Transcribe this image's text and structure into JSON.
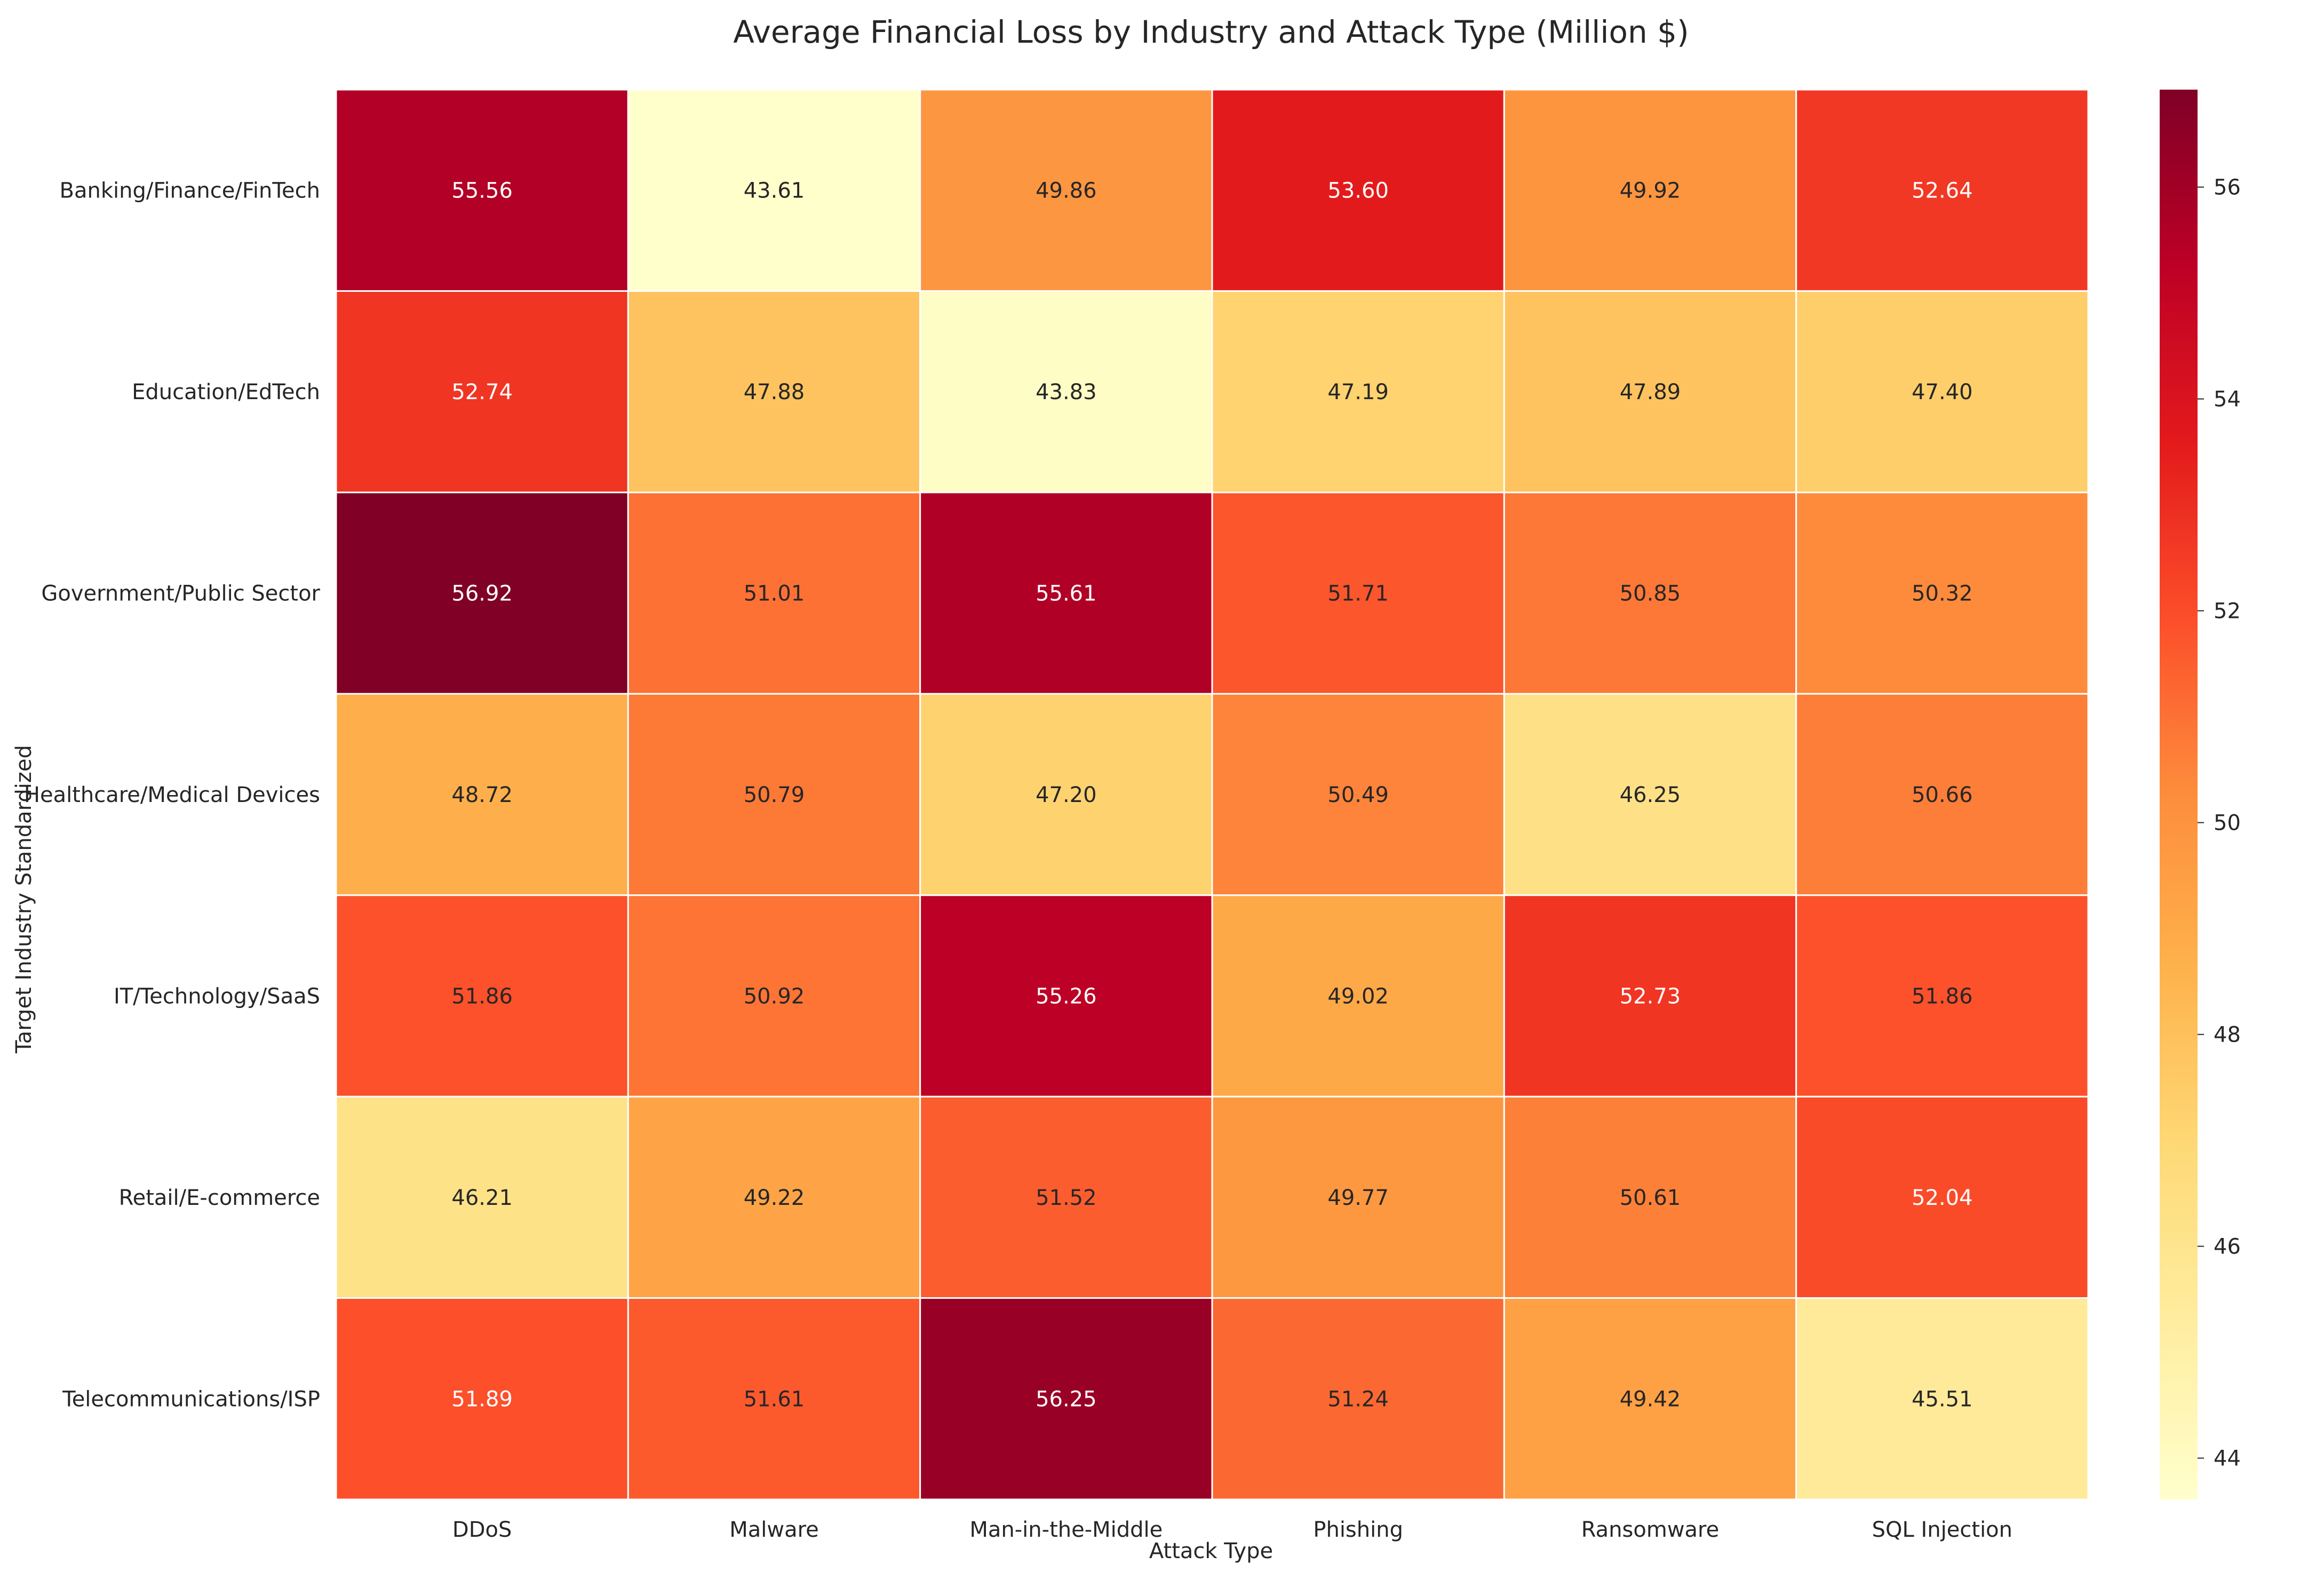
{
  "chart_data": {
    "type": "heatmap",
    "title": "Average Financial Loss by Industry and Attack Type (Million $)",
    "xlabel": "Attack Type",
    "ylabel": "Target Industry Standardized",
    "x_categories": [
      "DDoS",
      "Malware",
      "Man-in-the-Middle",
      "Phishing",
      "Ransomware",
      "SQL Injection"
    ],
    "y_categories": [
      "Banking/Finance/FinTech",
      "Education/EdTech",
      "Government/Public Sector",
      "Healthcare/Medical Devices",
      "IT/Technology/SaaS",
      "Retail/E-commerce",
      "Telecommunications/ISP"
    ],
    "values": [
      [
        55.56,
        43.61,
        49.86,
        53.6,
        49.92,
        52.64
      ],
      [
        52.74,
        47.88,
        43.83,
        47.19,
        47.89,
        47.4
      ],
      [
        56.92,
        51.01,
        55.61,
        51.71,
        50.85,
        50.32
      ],
      [
        48.72,
        50.79,
        47.2,
        50.49,
        46.25,
        50.66
      ],
      [
        51.86,
        50.92,
        55.26,
        49.02,
        52.73,
        51.86
      ],
      [
        46.21,
        49.22,
        51.52,
        49.77,
        50.61,
        52.04
      ],
      [
        51.89,
        51.61,
        56.25,
        51.24,
        49.42,
        45.51
      ]
    ],
    "value_format": "2 decimals",
    "colormap": "YlOrRd",
    "colormap_stops": [
      "#ffffcc",
      "#ffeda0",
      "#fed976",
      "#feb24c",
      "#fd8d3c",
      "#fc4e2a",
      "#e31a1c",
      "#bd0026",
      "#800026"
    ],
    "color_range": [
      43.61,
      56.92
    ],
    "colorbar": {
      "ticks": [
        44,
        46,
        48,
        50,
        52,
        54,
        56
      ]
    },
    "grid": false,
    "cell_border_color": "#ffffff"
  }
}
